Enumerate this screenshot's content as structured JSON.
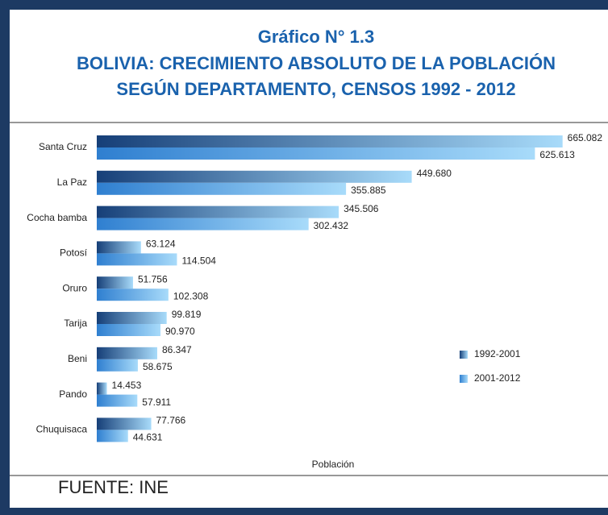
{
  "chart_data": {
    "type": "barh",
    "title": "Gráfico N° 1.3",
    "subtitle": [
      "BOLIVIA: CRECIMIENTO ABSOLUTO DE LA POBLACIÓN",
      "SEGÚN DEPARTAMENTO, CENSOS 1992 - 2012"
    ],
    "categories": [
      "Santa Cruz",
      "La Paz",
      "Cocha bamba",
      "Potosí",
      "Oruro",
      "Tarija",
      "Beni",
      "Pando",
      "Chuquisaca"
    ],
    "series": [
      {
        "name": "1992-2001",
        "color": "#163f78",
        "values": [
          665082,
          449680,
          345506,
          63124,
          51756,
          99819,
          86347,
          14453,
          77766
        ],
        "value_labels": [
          "665.082",
          "449.680",
          "345.506",
          "63.124",
          "51.756",
          "99.819",
          "86.347",
          "14.453",
          "77.766"
        ]
      },
      {
        "name": "2001-2012",
        "color": "#2f7fd0",
        "values": [
          625613,
          355885,
          302432,
          114504,
          102308,
          90970,
          58675,
          57911,
          44631
        ],
        "value_labels": [
          "625.613",
          "355.885",
          "302.432",
          "114.504",
          "102.308",
          "90.970",
          "58.675",
          "57.911",
          "44.631"
        ]
      }
    ],
    "xlabel": "Población",
    "source": "FUENTE: INE",
    "xlim": [
      0,
      700000
    ],
    "legend": "right"
  }
}
